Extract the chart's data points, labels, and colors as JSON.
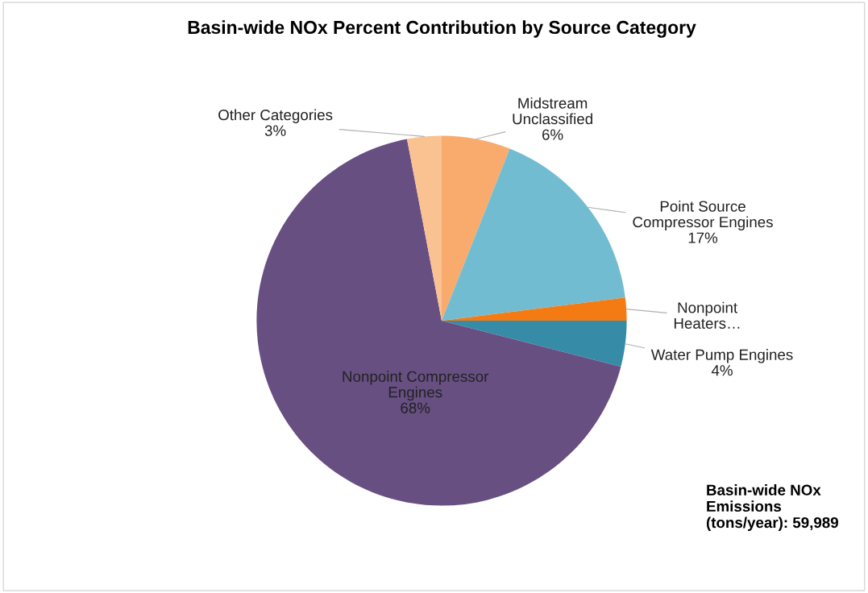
{
  "chart_data": {
    "type": "pie",
    "title": "Basin-wide NOx Percent Contribution by Source Category",
    "categories": [
      "Midstream\nUnclassified",
      "Point Source\nCompressor Engines",
      "Nonpoint\nHeaters…",
      "Water Pump Engines",
      "Nonpoint Compressor\nEngines",
      "Other Categories"
    ],
    "values": [
      6,
      17,
      2,
      4,
      68,
      3
    ],
    "value_labels": [
      "6%",
      "17%",
      null,
      "4%",
      "68%",
      "3%"
    ],
    "colors": [
      "#f8ab6c",
      "#72bcd1",
      "#f47b14",
      "#368ca6",
      "#674f82",
      "#fac191"
    ],
    "annotations": [
      "Basin-wide NOx\nEmissions\n(tons/year): 59,989"
    ],
    "legend": false
  }
}
